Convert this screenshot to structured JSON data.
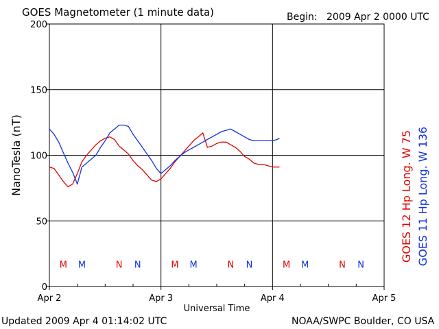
{
  "header": {
    "title": "GOES Magnetometer (1 minute data)",
    "begin_label": "Begin:",
    "begin_value": "2009 Apr 2 0000 UTC"
  },
  "footer": {
    "updated": "Updated 2009 Apr  4 01:14:02 UTC",
    "credit": "NOAA/SWPC Boulder, CO USA"
  },
  "colors": {
    "goes12": "#e00000",
    "goes11": "#1030e0",
    "grid": "#000000"
  },
  "chart_data": {
    "type": "line",
    "title": "GOES Magnetometer (1 minute data)",
    "xlabel": "Universal Time",
    "ylabel": "NanoTesla (nT)",
    "xlim": [
      0,
      72
    ],
    "ylim": [
      0,
      200
    ],
    "x_unit": "hours since 2009 Apr 2 0000 UTC",
    "x_ticks": [
      {
        "x": 0,
        "label": "Apr 2"
      },
      {
        "x": 24,
        "label": "Apr 3"
      },
      {
        "x": 48,
        "label": "Apr 4"
      },
      {
        "x": 72,
        "label": "Apr 5"
      }
    ],
    "y_ticks": [
      0,
      50,
      100,
      150,
      200
    ],
    "grid": true,
    "series": [
      {
        "name": "GOES 12",
        "legend": "GOES 12 Hp  Long. W 75",
        "color": "#e00000",
        "x": [
          0,
          1,
          2,
          3,
          4,
          5,
          6,
          7,
          8,
          9,
          10,
          11,
          12,
          13,
          14,
          15,
          16,
          17,
          18,
          19,
          20,
          21,
          22,
          23,
          24,
          25,
          26,
          27,
          28,
          29,
          30,
          31,
          32,
          33,
          34,
          35,
          36,
          37,
          38,
          39,
          40,
          41,
          42,
          43,
          44,
          45,
          46,
          47,
          48,
          49,
          49.5
        ],
        "y": [
          91,
          90,
          85,
          80,
          76,
          78,
          86,
          95,
          100,
          104,
          108,
          111,
          113,
          114,
          112,
          107,
          104,
          101,
          96,
          92,
          89,
          85,
          81,
          80,
          82,
          86,
          90,
          95,
          99,
          103,
          107,
          111,
          114,
          117,
          106,
          107,
          109,
          110,
          110,
          108,
          106,
          103,
          99,
          97,
          94,
          93,
          93,
          92,
          91,
          91,
          91
        ]
      },
      {
        "name": "GOES 11",
        "legend": "GOES 11 Hp  Long. W 136",
        "color": "#1030e0",
        "x": [
          0,
          1,
          2,
          3,
          4,
          5,
          6,
          7,
          8,
          9,
          10,
          11,
          12,
          13,
          14,
          15,
          16,
          17,
          18,
          19,
          20,
          21,
          22,
          23,
          24,
          25,
          26,
          27,
          28,
          29,
          30,
          31,
          32,
          33,
          34,
          35,
          36,
          37,
          38,
          39,
          40,
          41,
          42,
          43,
          44,
          45,
          46,
          47,
          48,
          49,
          49.5
        ],
        "y": [
          120,
          116,
          110,
          102,
          94,
          87,
          78,
          91,
          94,
          97,
          100,
          106,
          111,
          117,
          120,
          123,
          123,
          122,
          116,
          111,
          106,
          101,
          96,
          90,
          86,
          89,
          92,
          96,
          99,
          102,
          104,
          106,
          108,
          110,
          112,
          114,
          116,
          118,
          119,
          120,
          118,
          116,
          114,
          112,
          111,
          111,
          111,
          111,
          111,
          112,
          113
        ]
      }
    ],
    "markers": [
      {
        "label": "M",
        "x": 3,
        "series": "GOES 12"
      },
      {
        "label": "M",
        "x": 7,
        "series": "GOES 11"
      },
      {
        "label": "N",
        "x": 15,
        "series": "GOES 12"
      },
      {
        "label": "N",
        "x": 19,
        "series": "GOES 11"
      },
      {
        "label": "M",
        "x": 27,
        "series": "GOES 12"
      },
      {
        "label": "M",
        "x": 31,
        "series": "GOES 11"
      },
      {
        "label": "N",
        "x": 39,
        "series": "GOES 12"
      },
      {
        "label": "N",
        "x": 43,
        "series": "GOES 11"
      },
      {
        "label": "M",
        "x": 51,
        "series": "GOES 12"
      },
      {
        "label": "M",
        "x": 55,
        "series": "GOES 11"
      },
      {
        "label": "N",
        "x": 63,
        "series": "GOES 12"
      },
      {
        "label": "N",
        "x": 67,
        "series": "GOES 11"
      }
    ],
    "marker_level": 17
  }
}
